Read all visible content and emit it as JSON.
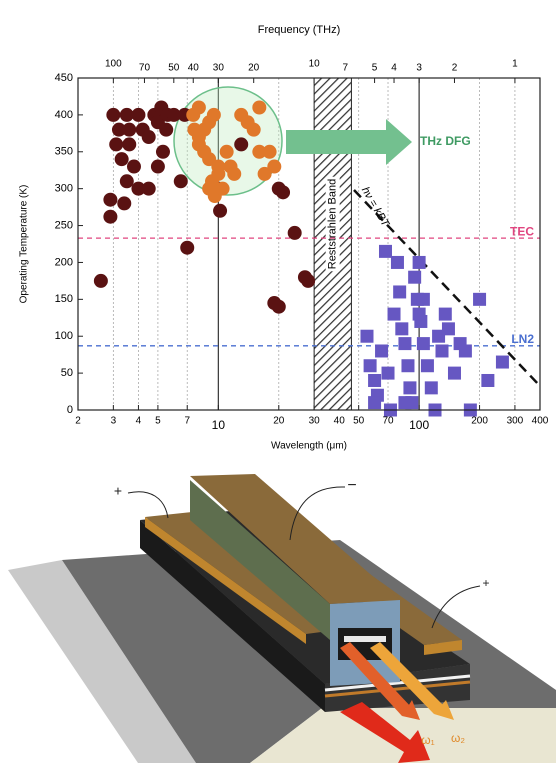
{
  "chart_data": {
    "type": "scatter",
    "x_label": "Wavelength (μm)",
    "y_label": "Operating Temperature (K)",
    "x2_label": "Frequency (THz)",
    "xscale": "log",
    "xlim": [
      2,
      400
    ],
    "xticks": [
      2,
      3,
      4,
      5,
      7,
      10,
      20,
      30,
      40,
      50,
      70,
      100,
      200,
      300,
      400
    ],
    "x2lim": [
      150,
      0.75
    ],
    "x2ticks": [
      100,
      70,
      50,
      40,
      30,
      20,
      10,
      7,
      5,
      4,
      3,
      2,
      1
    ],
    "ylim": [
      0,
      450
    ],
    "yticks": [
      0,
      50,
      100,
      150,
      200,
      250,
      300,
      350,
      400,
      450
    ],
    "grid": true,
    "series": [
      {
        "color": "#5a1212",
        "marker": "circle",
        "x": [
          2.6,
          2.9,
          2.9,
          3.4,
          3.0,
          3.2,
          3.5,
          3.6,
          3.3,
          3.8,
          4.0,
          4.2,
          4.5,
          3.5,
          4.0,
          4.8,
          5.0,
          5.2,
          5.5,
          5.3,
          5.6,
          6.0,
          5.0,
          4.5,
          6.5,
          6.8,
          7.0,
          10.2,
          10.0,
          13,
          20,
          21,
          19,
          20,
          24,
          27,
          28,
          3.1,
          3.6
        ],
        "values": [
          175,
          262,
          285,
          280,
          400,
          380,
          400,
          360,
          340,
          330,
          400,
          380,
          370,
          310,
          300,
          400,
          390,
          410,
          380,
          350,
          400,
          400,
          330,
          300,
          310,
          400,
          220,
          270,
          300,
          360,
          300,
          295,
          145,
          140,
          240,
          180,
          175,
          360,
          380
        ]
      },
      {
        "color": "#e0782a",
        "marker": "circle",
        "x": [
          7.5,
          8,
          8.5,
          9,
          9.5,
          8,
          8.5,
          9,
          9.3,
          9.6,
          10,
          10.5,
          11,
          11.5,
          12,
          13,
          14,
          15,
          16,
          17,
          18,
          19,
          9,
          10,
          8,
          16,
          7.6
        ],
        "values": [
          400,
          410,
          380,
          390,
          400,
          360,
          350,
          340,
          310,
          290,
          320,
          300,
          350,
          330,
          320,
          400,
          390,
          380,
          350,
          320,
          350,
          330,
          300,
          330,
          370,
          410,
          380
        ]
      },
      {
        "color": "#6657c2",
        "marker": "square",
        "x": [
          55,
          57,
          60,
          62,
          65,
          70,
          72,
          75,
          78,
          80,
          82,
          85,
          88,
          90,
          92,
          95,
          98,
          100,
          102,
          105,
          110,
          115,
          120,
          125,
          130,
          135,
          140,
          150,
          160,
          170,
          180,
          200,
          220,
          260,
          68,
          85,
          100,
          105,
          60
        ],
        "values": [
          100,
          60,
          40,
          20,
          80,
          50,
          0,
          130,
          200,
          160,
          110,
          90,
          60,
          30,
          10,
          180,
          150,
          200,
          120,
          90,
          60,
          30,
          0,
          100,
          80,
          130,
          110,
          50,
          90,
          80,
          0,
          150,
          40,
          65,
          215,
          10,
          130,
          150,
          10
        ]
      }
    ],
    "hlines": [
      {
        "label": "TEC",
        "value": 233,
        "color": "#e0457f"
      },
      {
        "label": "LN2",
        "value": 87,
        "color": "#4a6fd0"
      }
    ],
    "band": {
      "label": "Reststrahlen Band",
      "range": [
        30,
        46
      ]
    },
    "dfg_label": "THz DFG",
    "hv_label": "hν = kBT"
  },
  "diagram": {
    "labels": [
      "+",
      "−",
      "+",
      "ω₁",
      "ω₂"
    ]
  }
}
